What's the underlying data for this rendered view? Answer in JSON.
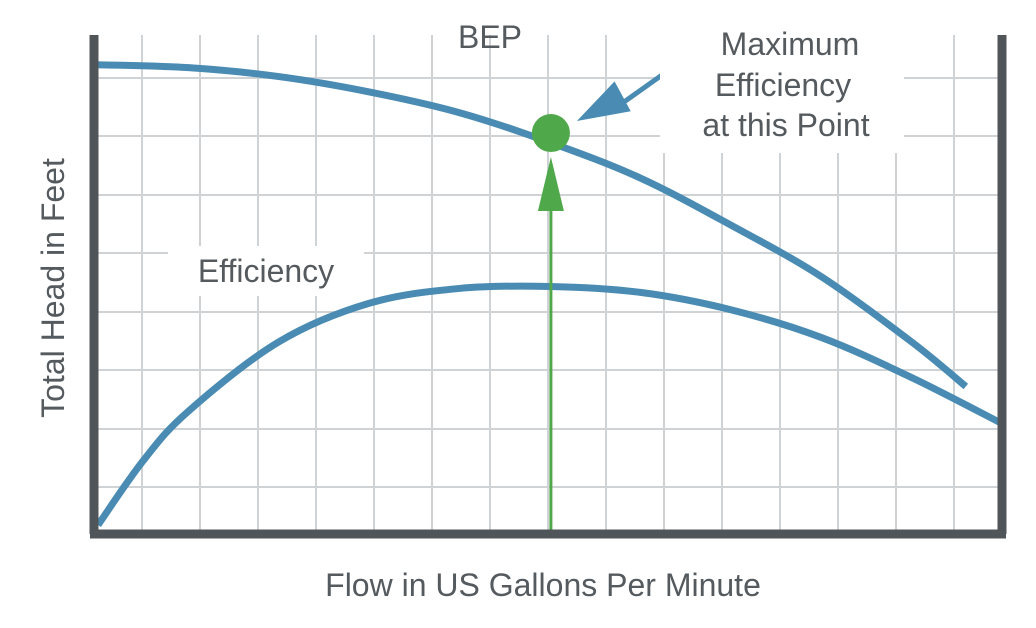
{
  "chart_data": {
    "type": "line",
    "title": "",
    "xlabel": "Flow in US Gallons Per Minute",
    "ylabel": "Total Head in Feet",
    "xlim": [
      0,
      100
    ],
    "ylim": [
      0,
      100
    ],
    "grid": true,
    "series": [
      {
        "name": "",
        "color": "#4a8bb3",
        "x": [
          0,
          10,
          20,
          30,
          40,
          50,
          60,
          70,
          80,
          90,
          96
        ],
        "y": [
          94,
          93.4,
          91.6,
          88.5,
          84.3,
          78.3,
          71.1,
          61.6,
          51.2,
          38.0,
          29.0
        ]
      },
      {
        "name": "Efficiency",
        "color": "#4a8bb3",
        "x": [
          0,
          5,
          10,
          20,
          30,
          40,
          50,
          60,
          70,
          80,
          90,
          100
        ],
        "y": [
          1,
          14,
          24,
          38,
          45.8,
          48.8,
          49.2,
          48,
          44.5,
          38.9,
          30.8,
          21.5
        ]
      }
    ],
    "annotations": {
      "bep_label": "BEP",
      "bep_point": {
        "x": 50.1,
        "y": 80.2,
        "color": "#4fa84a"
      },
      "bep_line_color": "#4fa84a",
      "efficiency_label": "Efficiency",
      "max_efficiency_lines": [
        "Maximum",
        "Efficiency",
        "at this Point"
      ],
      "arrow_color": "#4a8bb3"
    }
  }
}
